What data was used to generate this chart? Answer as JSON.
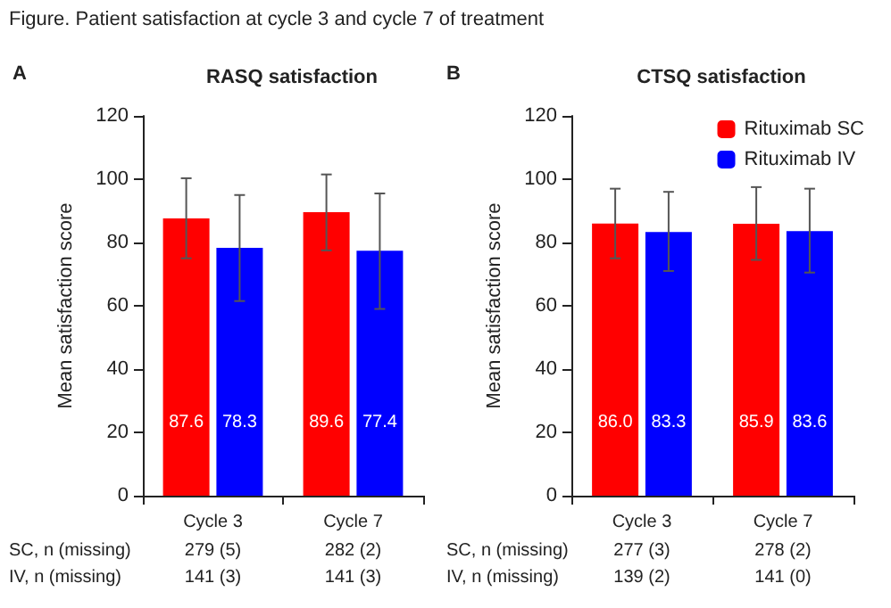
{
  "chart_data": [
    {
      "type": "bar",
      "title": "RASQ satisfaction",
      "ylabel": "Mean satisfaction score",
      "categories": [
        "Cycle 3",
        "Cycle 7"
      ],
      "series": [
        {
          "color": "#ff0000",
          "values": [
            87.6,
            89.6
          ],
          "value_labels": [
            "87.6",
            "89.6"
          ],
          "errors": [
            [
              75,
              100.3
            ],
            [
              77.5,
              101.5
            ]
          ]
        },
        {
          "color": "#0000ff",
          "values": [
            78.3,
            77.4
          ],
          "value_labels": [
            "78.3",
            "77.4"
          ],
          "errors": [
            [
              61.5,
              95
            ],
            [
              59,
              95.5
            ]
          ]
        }
      ],
      "ylim": [
        0,
        120
      ],
      "yticks": [
        0,
        20,
        40,
        60,
        80,
        100,
        120
      ],
      "grid": false,
      "legend": false,
      "annotations": [
        "Figure. Patient satisfaction at cycle 3 and cycle 7 of treatment",
        "A",
        "SC, n (missing)",
        "279 (5)",
        "282 (2)",
        "IV, n (missing)",
        "141 (3)",
        "141 (3)"
      ]
    },
    {
      "type": "bar",
      "title": "CTSQ satisfaction",
      "ylabel": "Mean satisfaction score",
      "categories": [
        "Cycle 3",
        "Cycle 7"
      ],
      "series": [
        {
          "name": "Rituximab SC",
          "color": "#ff0000",
          "values": [
            86.0,
            85.9
          ],
          "value_labels": [
            "86.0",
            "85.9"
          ],
          "errors": [
            [
              75,
              97
            ],
            [
              74.5,
              97.5
            ]
          ]
        },
        {
          "name": "Rituximab IV",
          "color": "#0000ff",
          "values": [
            83.3,
            83.6
          ],
          "value_labels": [
            "83.3",
            "83.6"
          ],
          "errors": [
            [
              71,
              96
            ],
            [
              70.5,
              97
            ]
          ]
        }
      ],
      "ylim": [
        0,
        120
      ],
      "yticks": [
        0,
        20,
        40,
        60,
        80,
        100,
        120
      ],
      "grid": false,
      "legend": "top right",
      "annotations": [
        "B",
        "SC, n (missing)",
        "277 (3)",
        "278 (2)",
        "IV, n (missing)",
        "139 (2)",
        "141 (0)"
      ]
    }
  ]
}
